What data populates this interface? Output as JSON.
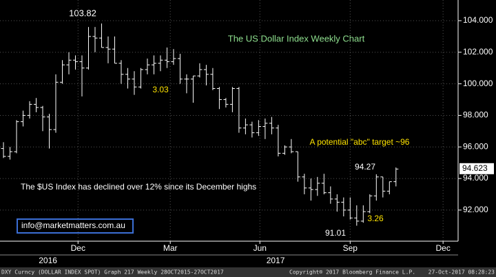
{
  "chart_data": {
    "type": "ohlc",
    "title": "The US Dollar Index Weekly Chart",
    "series": [
      {
        "color": "#ffffff",
        "open": [
          95.9,
          95.4,
          95.7,
          97.6,
          98.0,
          98.7,
          98.5,
          97.9,
          97.1,
          100.1,
          101.2,
          101.5,
          101.4,
          101.0,
          103.0,
          102.9,
          102.3,
          102.2,
          101.3,
          100.6,
          100.3,
          99.8,
          100.9,
          101.2,
          101.3,
          101.5,
          101.4,
          101.6,
          100.3,
          100.3,
          100.5,
          100.9,
          100.6,
          99.7,
          99.0,
          98.7,
          99.7,
          97.2,
          97.4,
          96.9,
          97.3,
          97.5,
          97.2,
          95.6,
          96.0,
          95.7,
          94.1,
          93.4,
          93.3,
          93.7,
          93.1,
          92.7,
          92.5,
          92.0,
          91.5,
          91.3,
          91.9,
          92.9,
          94.1,
          93.2,
          93.8
        ],
        "high": [
          96.3,
          96.0,
          97.7,
          98.3,
          98.9,
          99.1,
          98.6,
          98.1,
          100.6,
          101.5,
          102.0,
          101.8,
          101.8,
          103.6,
          103.6,
          103.82,
          103.0,
          103.0,
          101.5,
          101.0,
          100.8,
          101.0,
          101.6,
          101.8,
          101.8,
          102.3,
          102.2,
          101.9,
          100.6,
          100.5,
          101.3,
          101.2,
          101.0,
          99.8,
          99.1,
          99.8,
          99.8,
          97.8,
          97.6,
          97.7,
          97.8,
          97.9,
          97.4,
          96.1,
          96.5,
          95.7,
          94.3,
          94.0,
          94.1,
          94.3,
          93.5,
          93.0,
          92.8,
          92.8,
          92.3,
          92.3,
          93.0,
          94.27,
          94.1,
          93.8,
          94.7
        ],
        "low": [
          95.3,
          95.2,
          95.6,
          97.3,
          97.8,
          98.2,
          97.0,
          95.9,
          96.9,
          100.0,
          100.6,
          100.9,
          99.2,
          100.9,
          102.0,
          102.3,
          101.3,
          101.3,
          100.0,
          99.7,
          99.3,
          99.7,
          100.6,
          100.6,
          100.8,
          101.0,
          101.2,
          100.0,
          99.4,
          98.8,
          100.4,
          99.9,
          99.6,
          98.4,
          98.5,
          98.2,
          96.9,
          96.8,
          96.6,
          96.7,
          96.5,
          96.8,
          95.4,
          95.5,
          95.6,
          93.8,
          93.0,
          92.6,
          92.9,
          93.0,
          92.4,
          91.9,
          91.6,
          91.4,
          91.01,
          91.2,
          91.8,
          92.6,
          92.8,
          93.0,
          93.5
        ],
        "close": [
          95.4,
          95.7,
          97.6,
          98.0,
          98.7,
          98.5,
          97.9,
          97.1,
          100.1,
          101.2,
          101.5,
          101.4,
          101.0,
          103.0,
          102.9,
          102.3,
          102.2,
          101.3,
          100.6,
          100.3,
          99.8,
          100.9,
          101.2,
          101.3,
          101.5,
          101.4,
          101.6,
          100.3,
          100.3,
          100.5,
          100.9,
          100.6,
          99.7,
          99.0,
          98.7,
          99.7,
          97.2,
          97.4,
          96.9,
          97.3,
          97.5,
          97.2,
          95.6,
          96.0,
          95.7,
          94.1,
          93.4,
          93.3,
          93.7,
          93.1,
          92.7,
          92.5,
          92.0,
          91.5,
          91.3,
          91.9,
          92.9,
          94.1,
          93.2,
          93.8,
          94.6
        ]
      }
    ],
    "ylim": [
      90.03,
      105.31
    ],
    "yticks": [
      {
        "value": 92,
        "label": "92.000"
      },
      {
        "value": 94,
        "label": "94.000"
      },
      {
        "value": 96,
        "label": "96.000"
      },
      {
        "value": 98,
        "label": "98.000"
      },
      {
        "value": 100,
        "label": "100.000"
      },
      {
        "value": 102,
        "label": "102.000"
      },
      {
        "value": 104,
        "label": "104.000"
      }
    ],
    "xlim": [
      -0.53,
      69.5
    ],
    "xticks": [
      {
        "value": 11.4,
        "label": "Dec"
      },
      {
        "value": 25.5,
        "label": "Mar"
      },
      {
        "value": 39.2,
        "label": "Jun"
      },
      {
        "value": 53,
        "label": "Sep"
      },
      {
        "value": 67.2,
        "label": "Dec"
      }
    ],
    "year_labels": [
      {
        "value": 6.8,
        "label": "2016"
      },
      {
        "value": 41.6,
        "label": "2017"
      }
    ],
    "grid": true,
    "last_price": {
      "value": 94.623,
      "label": "94.623"
    },
    "annotations": [
      "103.82",
      "3.03",
      "A potential \"abc\" target ~96",
      "94.27",
      "The $US Index has declined over 12% since its December highs",
      "91.01",
      "3.26"
    ],
    "email": "info@marketmatters.com.au",
    "footer": [
      "DXY Curncy (DOLLAR INDEX SPOT) Graph 217 Weekly 28OCT2015-27OCT2017",
      "Copyright® 2017 Bloomberg Finance L.P.",
      "27-Oct-2017 08:28:23"
    ]
  }
}
